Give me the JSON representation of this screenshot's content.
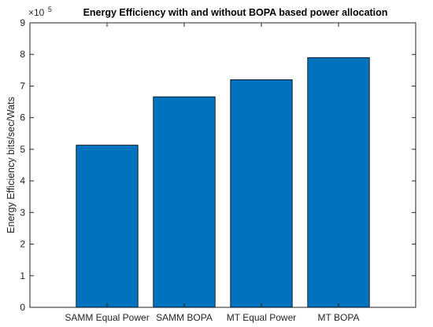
{
  "chart_data": {
    "type": "bar",
    "title": "Energy Efficiency with and without BOPA based power allocation",
    "xlabel": "",
    "ylabel": "Energy Efficiency bits/sec/Wats",
    "categories": [
      "SAMM Equal Power",
      "SAMM BOPA",
      "MT Equal Power",
      "MT BOPA"
    ],
    "series": [
      {
        "values": [
          513000,
          666000,
          720000,
          790000
        ]
      }
    ],
    "ylim": [
      0,
      900000
    ],
    "xlim": [
      0,
      5
    ],
    "yticks": [
      0,
      1,
      2,
      3,
      4,
      5,
      6,
      7,
      8,
      9
    ],
    "ytick_labels": [
      "0",
      "1",
      "2",
      "3",
      "4",
      "5",
      "6",
      "7",
      "8",
      "9"
    ],
    "y_exponent": {
      "base": "×10",
      "power": "5"
    },
    "grid": false,
    "legend": null,
    "bar_color": "#0072BD",
    "bar_edge_color": "#000000"
  }
}
